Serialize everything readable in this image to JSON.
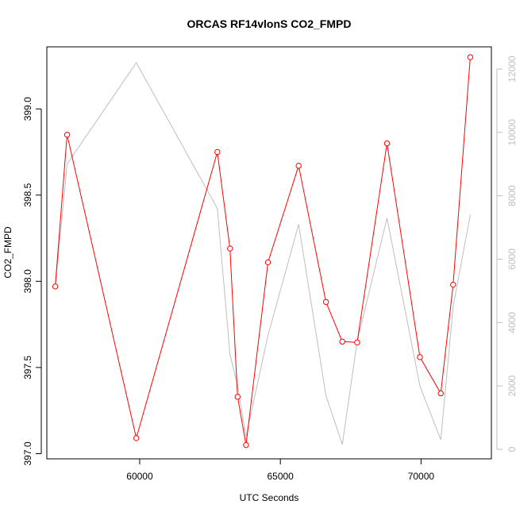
{
  "chart_data": {
    "type": "line",
    "title": "ORCAS RF14vlonS CO2_FMPD",
    "xlabel": "UTC Seconds",
    "ylabel": "CO2_FMPD",
    "y2label": "",
    "xlim": [
      56700,
      72500
    ],
    "ylim": [
      396.97,
      399.36
    ],
    "y2lim": [
      -300,
      12700
    ],
    "x_ticks": [
      60000,
      65000,
      70000
    ],
    "y_ticks": [
      397.0,
      397.5,
      398.0,
      398.5,
      399.0
    ],
    "y2_ticks": [
      0,
      2000,
      4000,
      6000,
      8000,
      10000,
      12000
    ],
    "grid": false,
    "legend": "none",
    "series": [
      {
        "axis": "left",
        "color": "#ff0000",
        "marker": "open-circle",
        "x": [
          57000,
          57420,
          59880,
          62760,
          63210,
          63480,
          63780,
          64560,
          65650,
          66620,
          67200,
          67730,
          68790,
          69960,
          70700,
          71140,
          71750
        ],
        "values": [
          397.97,
          398.85,
          397.09,
          398.75,
          398.19,
          397.33,
          397.05,
          398.11,
          398.67,
          397.88,
          397.65,
          397.645,
          398.8,
          397.56,
          397.35,
          397.98,
          399.3
        ]
      },
      {
        "axis": "right",
        "color": "#bebebe",
        "marker": "none",
        "x": [
          57000,
          57420,
          59880,
          62760,
          63210,
          63480,
          63780,
          64560,
          65650,
          66620,
          67200,
          67730,
          68790,
          69960,
          70700,
          71140,
          71750
        ],
        "values": [
          5100,
          9000,
          12200,
          7600,
          3000,
          2000,
          400,
          3600,
          7100,
          1700,
          150,
          3400,
          7300,
          2000,
          300,
          4500,
          7400
        ]
      }
    ]
  }
}
